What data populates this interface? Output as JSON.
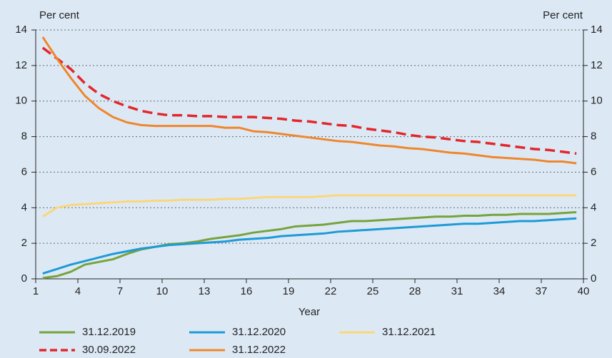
{
  "chart_data": {
    "type": "line",
    "y_label": "Per cent",
    "y2_label": "Per cent",
    "x_label": "Year",
    "x": [
      1.5,
      2.5,
      3.5,
      4.5,
      5.5,
      6.5,
      7.5,
      8.5,
      9.5,
      10.5,
      11.5,
      12.5,
      13.5,
      14.5,
      15.5,
      16.5,
      17.5,
      18.5,
      19.5,
      20.5,
      21.5,
      22.5,
      23.5,
      24.5,
      25.5,
      26.5,
      27.5,
      28.5,
      29.5,
      30.5,
      31.5,
      32.5,
      33.5,
      34.5,
      35.5,
      36.5,
      37.5,
      38.5,
      39.5
    ],
    "series": [
      {
        "name": "31.12.2019",
        "color": "#77a33c",
        "dashed": false,
        "values": [
          0.05,
          0.15,
          0.4,
          0.8,
          0.95,
          1.1,
          1.4,
          1.65,
          1.8,
          1.95,
          2.0,
          2.1,
          2.25,
          2.35,
          2.45,
          2.6,
          2.7,
          2.8,
          2.95,
          3.0,
          3.05,
          3.15,
          3.25,
          3.25,
          3.3,
          3.35,
          3.4,
          3.45,
          3.5,
          3.5,
          3.55,
          3.55,
          3.6,
          3.6,
          3.65,
          3.65,
          3.65,
          3.7,
          3.75
        ]
      },
      {
        "name": "31.12.2020",
        "color": "#1e9ad6",
        "dashed": false,
        "values": [
          0.3,
          0.55,
          0.8,
          1.0,
          1.2,
          1.4,
          1.55,
          1.7,
          1.8,
          1.9,
          1.95,
          2.0,
          2.05,
          2.1,
          2.2,
          2.25,
          2.3,
          2.4,
          2.45,
          2.5,
          2.55,
          2.65,
          2.7,
          2.75,
          2.8,
          2.85,
          2.9,
          2.95,
          3.0,
          3.05,
          3.1,
          3.1,
          3.15,
          3.2,
          3.25,
          3.25,
          3.3,
          3.35,
          3.4
        ]
      },
      {
        "name": "31.12.2021",
        "color": "#fbd67a",
        "dashed": false,
        "values": [
          3.5,
          4.0,
          4.15,
          4.2,
          4.25,
          4.3,
          4.35,
          4.35,
          4.4,
          4.4,
          4.45,
          4.45,
          4.45,
          4.5,
          4.5,
          4.55,
          4.6,
          4.6,
          4.6,
          4.6,
          4.65,
          4.7,
          4.7,
          4.7,
          4.7,
          4.7,
          4.7,
          4.7,
          4.7,
          4.7,
          4.7,
          4.7,
          4.7,
          4.7,
          4.7,
          4.7,
          4.7,
          4.7,
          4.7
        ]
      },
      {
        "name": "30.09.2022",
        "color": "#e2272c",
        "dashed": true,
        "values": [
          13.0,
          12.4,
          11.8,
          11.0,
          10.4,
          10.0,
          9.7,
          9.45,
          9.3,
          9.2,
          9.2,
          9.15,
          9.15,
          9.1,
          9.1,
          9.1,
          9.05,
          9.0,
          8.9,
          8.85,
          8.75,
          8.65,
          8.6,
          8.45,
          8.35,
          8.25,
          8.1,
          8.0,
          7.95,
          7.85,
          7.75,
          7.7,
          7.6,
          7.5,
          7.4,
          7.3,
          7.25,
          7.15,
          7.05
        ]
      },
      {
        "name": "31.12.2022",
        "color": "#f0862c",
        "dashed": false,
        "values": [
          13.6,
          12.4,
          11.3,
          10.3,
          9.6,
          9.1,
          8.8,
          8.65,
          8.6,
          8.6,
          8.6,
          8.6,
          8.6,
          8.5,
          8.5,
          8.3,
          8.25,
          8.15,
          8.05,
          7.95,
          7.85,
          7.75,
          7.7,
          7.6,
          7.5,
          7.45,
          7.35,
          7.3,
          7.2,
          7.1,
          7.05,
          6.95,
          6.85,
          6.8,
          6.75,
          6.7,
          6.6,
          6.6,
          6.5
        ]
      }
    ],
    "xlim": [
      1,
      40
    ],
    "xticks": [
      1,
      4,
      7,
      10,
      13,
      16,
      19,
      22,
      25,
      28,
      31,
      34,
      37,
      40
    ],
    "ylim": [
      0,
      14
    ],
    "yticks": [
      0,
      2,
      4,
      6,
      8,
      10,
      12,
      14
    ],
    "y2lim": [
      0,
      14
    ],
    "y2ticks": [
      0,
      2,
      4,
      6,
      8,
      10,
      12,
      14
    ],
    "grid": true
  }
}
